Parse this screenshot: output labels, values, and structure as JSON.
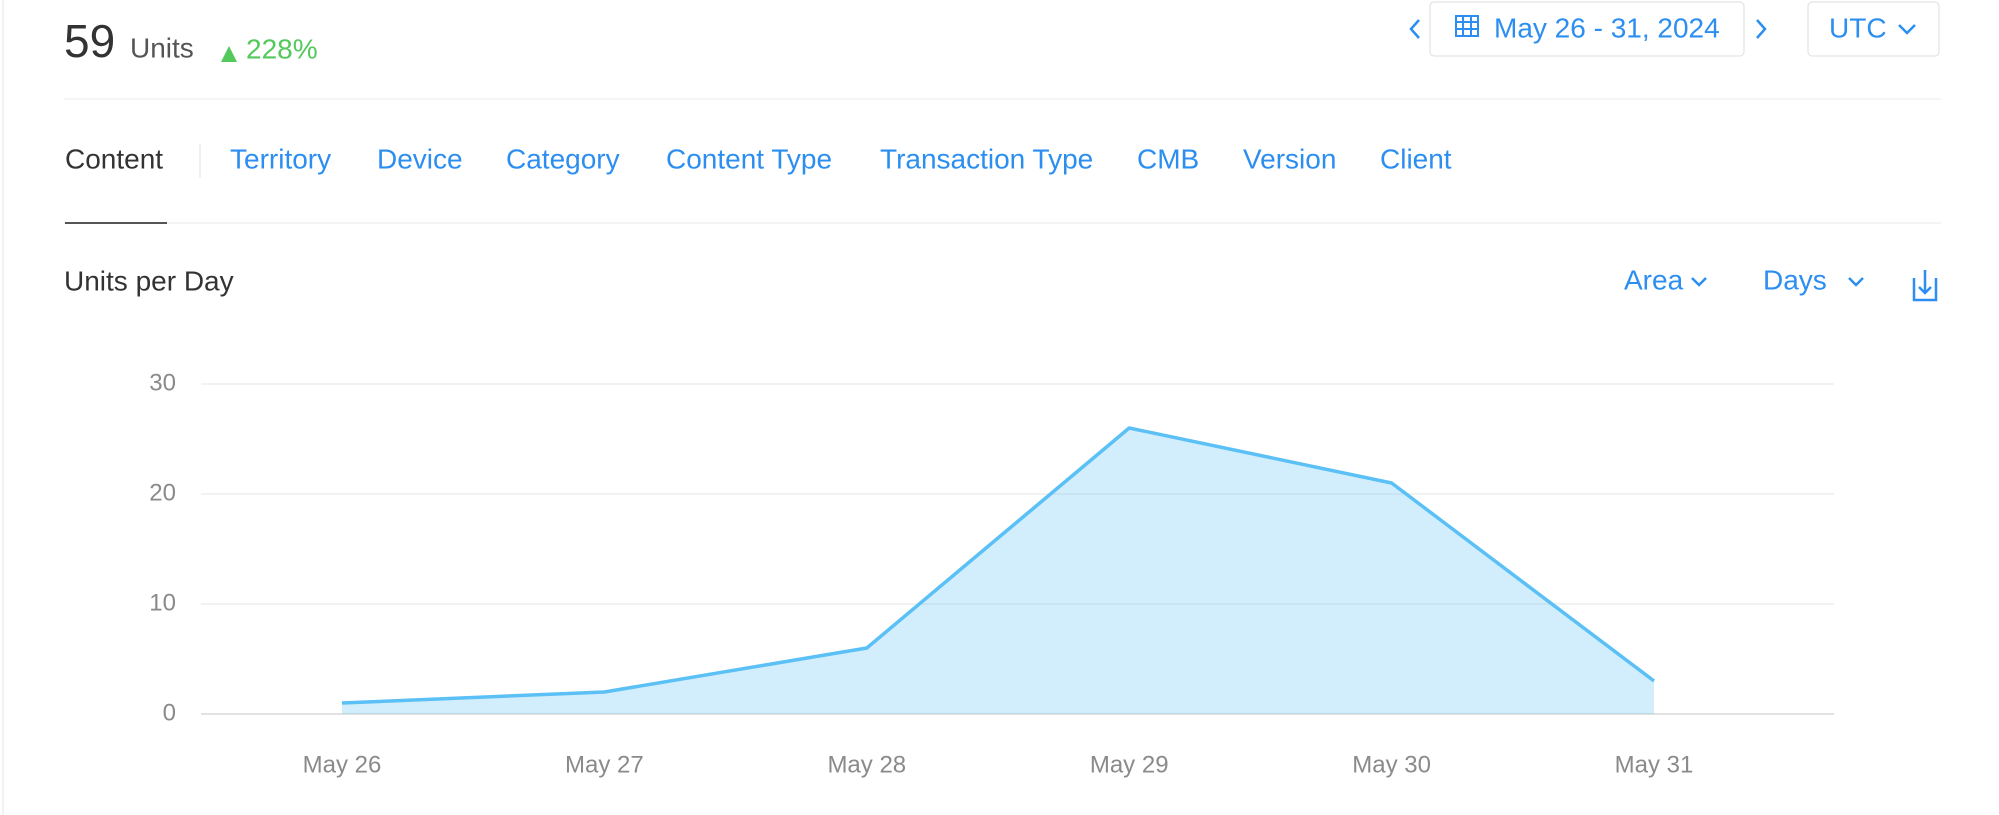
{
  "header": {
    "total": 59,
    "unit": "Units",
    "change": "228%",
    "date_range": "May 26 - 31, 2024",
    "timezone": "UTC"
  },
  "tabs": [
    "Content",
    "Territory",
    "Device",
    "Category",
    "Content Type",
    "Transaction Type",
    "CMB",
    "Version",
    "Client"
  ],
  "controls": {
    "chart_style": "Area",
    "interval": "Days"
  },
  "chart_data": {
    "type": "area",
    "title": "Units per Day",
    "categories": [
      "May 26",
      "May 27",
      "May 28",
      "May 29",
      "May 30",
      "May 31"
    ],
    "series": [
      {
        "name": "Units",
        "color": "#5ac0f5",
        "values": [
          1,
          2,
          6,
          26,
          21,
          3
        ]
      }
    ],
    "ylim": [
      0,
      30
    ],
    "yticks": [
      0,
      10,
      20,
      30
    ],
    "grid": true
  }
}
